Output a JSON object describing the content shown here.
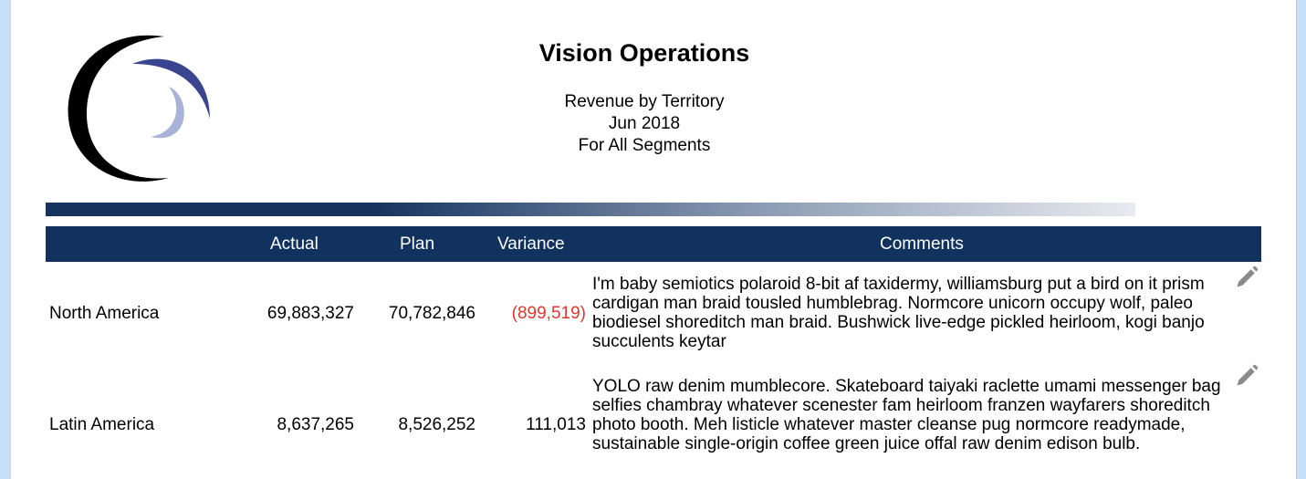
{
  "report": {
    "title": "Vision Operations",
    "subtitle_lines": [
      "Revenue by Territory",
      "Jun 2018",
      "For All Segments"
    ]
  },
  "table": {
    "columns": [
      "",
      "Actual",
      "Plan",
      "Variance",
      "Comments"
    ],
    "rows": [
      {
        "territory": "North America",
        "actual": "69,883,327",
        "plan": "70,782,846",
        "variance": "(899,519)",
        "variance_negative": true,
        "comment": "I'm baby semiotics polaroid 8-bit af taxidermy, williamsburg put a bird on it prism cardigan man braid tousled humblebrag. Normcore unicorn occupy wolf, paleo biodiesel shoreditch man braid. Bushwick live-edge pickled heirloom, kogi banjo succulents keytar"
      },
      {
        "territory": "Latin America",
        "actual": "8,637,265",
        "plan": "8,526,252",
        "variance": "111,013",
        "variance_negative": false,
        "comment": "YOLO raw denim mumblecore. Skateboard taiyaki raclette umami messenger bag selfies chambray whatever scenester fam heirloom franzen wayfarers shoreditch photo booth. Meh listicle whatever master cleanse pug normcore readymade, sustainable single-origin coffee green juice offal raw denim edison bulb."
      }
    ]
  },
  "colors": {
    "header_bg": "#11325f",
    "negative": "#e0362c",
    "page_bg": "#c5e0f8"
  },
  "icons": {
    "logo": "crescent-logo",
    "edit": "pencil-icon"
  }
}
